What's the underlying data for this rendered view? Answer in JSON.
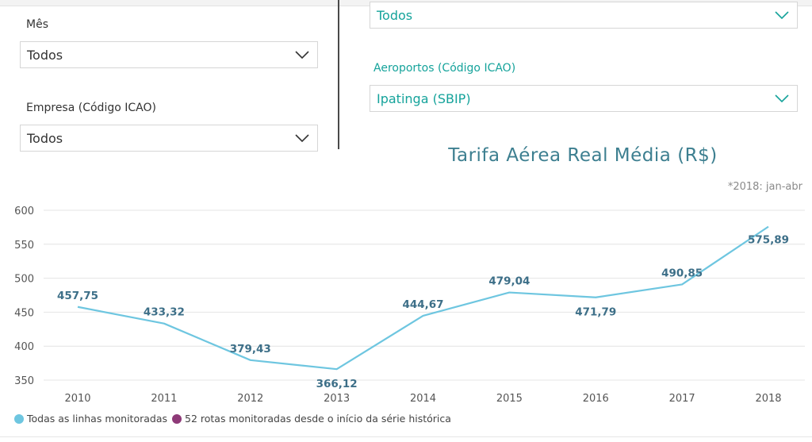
{
  "filters": {
    "mes": {
      "label": "Mês",
      "value": "Todos"
    },
    "empresa": {
      "label": "Empresa (Código ICAO)",
      "value": "Todos"
    },
    "top_right": {
      "value": "Todos"
    },
    "aeroportos": {
      "label": "Aeroportos (Código ICAO)",
      "value": "Ipatinga (SBIP)"
    }
  },
  "note": "*2018: jan-abr",
  "colors": {
    "series_all": "#6ec6e0",
    "series_52": "#8e3a78",
    "title": "#3d7f90",
    "accent": "#15a39b",
    "data_label": "#3d6f88"
  },
  "chart_data": {
    "type": "line",
    "title": "Tarifa Aérea Real Média (R$)",
    "xlabel": "",
    "ylabel": "",
    "x": [
      "2010",
      "2011",
      "2012",
      "2013",
      "2014",
      "2015",
      "2016",
      "2017",
      "2018"
    ],
    "ylim": [
      350,
      600
    ],
    "yticks": [
      "350",
      "400",
      "450",
      "500",
      "550",
      "600"
    ],
    "grid": true,
    "series": [
      {
        "name": "Todas as linhas monitoradas",
        "values": [
          457.75,
          433.32,
          379.43,
          366.12,
          444.67,
          479.04,
          471.79,
          490.85,
          575.89
        ],
        "labels": [
          "457,75",
          "433,32",
          "379,43",
          "366,12",
          "444,67",
          "479,04",
          "471,79",
          "490,85",
          "575,89"
        ]
      }
    ],
    "legend": [
      {
        "name": "Todas as linhas monitoradas",
        "color": "#6ec6e0"
      },
      {
        "name": "52 rotas monitoradas desde o início da série histórica",
        "color": "#8e3a78"
      }
    ],
    "legend_position": "bottom-left"
  }
}
